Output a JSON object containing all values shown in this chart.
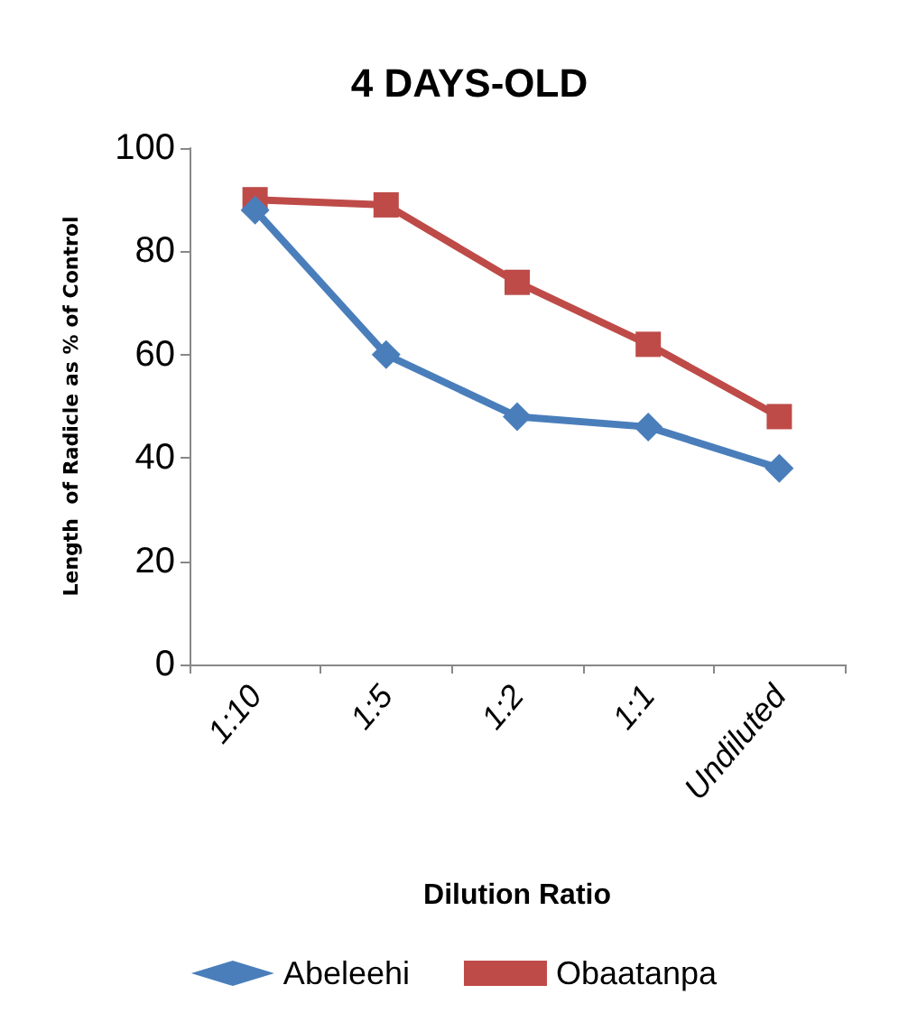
{
  "chart_data": {
    "type": "line",
    "title": "4 DAYS-OLD",
    "xlabel": "Dilution Ratio",
    "ylabel": "Length  of Radicle as % of Control",
    "categories": [
      "1:10",
      "1:5",
      "1:2",
      "1:1",
      "Undiluted"
    ],
    "series": [
      {
        "name": "Abeleehi",
        "color": "#4a7ebb",
        "marker": "diamond",
        "values": [
          88,
          60,
          48,
          46,
          38
        ]
      },
      {
        "name": "Obaatanpa",
        "color": "#be4b48",
        "marker": "square",
        "values": [
          90,
          89,
          74,
          62,
          48
        ]
      }
    ],
    "ylim": [
      0,
      100
    ],
    "yticks": [
      0,
      20,
      40,
      60,
      80,
      100
    ],
    "grid": false,
    "legend": "bottom",
    "line_style": "solid"
  }
}
